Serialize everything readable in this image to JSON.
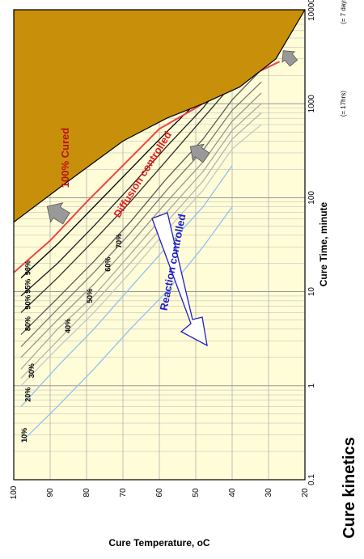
{
  "chart_data": {
    "type": "line",
    "title": "Cure kinetics",
    "xlabel": "Cure Time, minute",
    "ylabel": "Cure Temperature, oC",
    "x_scale": "log",
    "xlim": [
      0.1,
      10000
    ],
    "ylim": [
      20,
      100
    ],
    "x_ticks": [
      "0.1",
      "1",
      "10",
      "100",
      "1000",
      "10000"
    ],
    "y_ticks": [
      "100",
      "90",
      "80",
      "70",
      "60",
      "50",
      "40",
      "30",
      "20"
    ],
    "x_tick_notes": [
      {
        "at": 1000,
        "text": "(= 17hrs)"
      },
      {
        "at": 10000,
        "text": "(= 7 days)"
      }
    ],
    "grid": true,
    "series": [
      {
        "name": "10%",
        "color": "#8fc3ee",
        "x": [
          0.25,
          0.6,
          1.5,
          4,
          10,
          30,
          80
        ],
        "y": [
          98,
          88,
          78,
          68,
          58,
          48,
          40
        ]
      },
      {
        "name": "20%",
        "color": "#8fc3ee",
        "x": [
          0.6,
          1.6,
          4,
          11,
          30,
          80,
          220
        ],
        "y": [
          98,
          88,
          78,
          68,
          58,
          48,
          40
        ]
      },
      {
        "name": "30%",
        "color": "#c8c8c8",
        "x": [
          1.0,
          2.5,
          6,
          16,
          45,
          120,
          330,
          600
        ],
        "y": [
          98,
          88,
          78,
          68,
          58,
          48,
          40,
          32
        ]
      },
      {
        "name": "40%",
        "color": "#b4b4b4",
        "x": [
          1.2,
          3,
          7.5,
          20,
          55,
          150,
          420,
          800
        ],
        "y": [
          98,
          88,
          78,
          68,
          58,
          48,
          40,
          32
        ]
      },
      {
        "name": "50%",
        "color": "#a8a8a8",
        "x": [
          1.5,
          4,
          9,
          25,
          70,
          190,
          520,
          1000
        ],
        "y": [
          98,
          88,
          78,
          68,
          58,
          48,
          40,
          32
        ]
      },
      {
        "name": "60%",
        "color": "#969696",
        "x": [
          2,
          5,
          12,
          32,
          90,
          240,
          650,
          1300
        ],
        "y": [
          98,
          88,
          78,
          68,
          58,
          48,
          40,
          32
        ]
      },
      {
        "name": "70%",
        "color": "#7a7a7a",
        "x": [
          2.6,
          6.5,
          16,
          42,
          120,
          320,
          850,
          1700
        ],
        "y": [
          98,
          88,
          78,
          68,
          58,
          48,
          40,
          32
        ]
      },
      {
        "name": "80%",
        "color": "#5a5a5a",
        "x": [
          3.5,
          8.5,
          21,
          55,
          160,
          420,
          1100,
          2300
        ],
        "y": [
          98,
          88,
          78,
          68,
          58,
          48,
          40,
          32
        ]
      },
      {
        "name": "90%",
        "color": "#303030",
        "x": [
          6,
          14,
          35,
          90,
          250,
          700,
          1600,
          3500
        ],
        "y": [
          98,
          88,
          78,
          68,
          58,
          48,
          40,
          30
        ]
      },
      {
        "name": "95%",
        "color": "#202020",
        "x": [
          9,
          20,
          50,
          130,
          350,
          900,
          2200,
          4500
        ],
        "y": [
          98,
          88,
          78,
          68,
          58,
          48,
          40,
          30
        ]
      },
      {
        "name": "99%",
        "color": "#000000",
        "x": [
          14,
          32,
          80,
          200,
          500,
          1200,
          2800,
          6000
        ],
        "y": [
          98,
          88,
          78,
          68,
          58,
          48,
          40,
          30
        ]
      }
    ],
    "boundary_line": {
      "color": "#ee4444",
      "x": [
        16,
        35,
        90,
        220,
        540,
        900,
        1600,
        2800
      ],
      "y": [
        100,
        90,
        80,
        70,
        60,
        50,
        40,
        27
      ]
    },
    "cured_region": {
      "label": "100% Cured",
      "color": "#c8900a",
      "boundary_x": [
        55,
        150,
        400,
        700,
        1000,
        1500,
        3000,
        10000
      ],
      "boundary_y": [
        100,
        85,
        70,
        58,
        48,
        38,
        28,
        20
      ]
    },
    "annotations": {
      "diffusion": "Diffusion controlled",
      "reaction": "Reaction controlled"
    }
  }
}
